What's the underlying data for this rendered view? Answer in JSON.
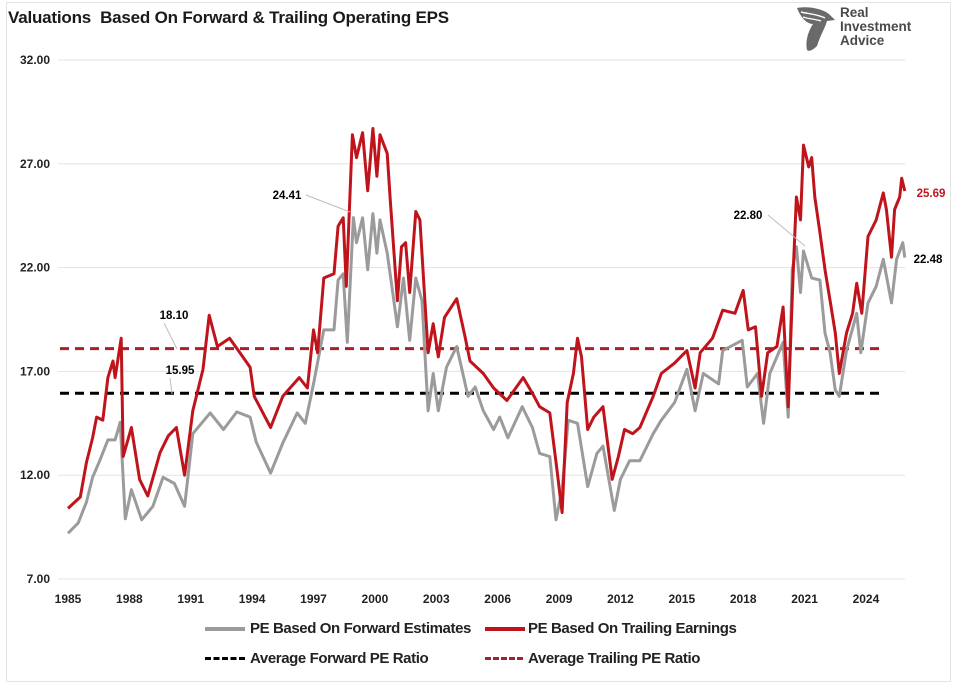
{
  "title": "Valuations  Based On Forward & Trailing Operating EPS",
  "logo": {
    "line1": "Real",
    "line2": "Investment",
    "line3": "Advice"
  },
  "chart_data": {
    "type": "line",
    "title": "Valuations  Based On Forward & Trailing Operating EPS",
    "xlabel": "",
    "ylabel": "",
    "xlim": [
      1985,
      2026
    ],
    "ylim": [
      7,
      32
    ],
    "x_ticks": [
      "1985",
      "1988",
      "1991",
      "1994",
      "1997",
      "2000",
      "2003",
      "2006",
      "2009",
      "2012",
      "2015",
      "2018",
      "2021",
      "2024"
    ],
    "y_ticks": [
      "7.00",
      "12.00",
      "17.00",
      "22.00",
      "27.00",
      "32.00"
    ],
    "grid": "horizontal",
    "legend_position": "bottom",
    "colors": {
      "forward": "#9b9b9b",
      "trailing": "#c0141c",
      "avg_forward": "#000000",
      "avg_trailing": "#a8212a"
    },
    "series": [
      {
        "name": "PE Based On Forward Estimates",
        "style": "solid",
        "points": [
          [
            1985.0,
            9.2
          ],
          [
            1985.5,
            9.7
          ],
          [
            1985.9,
            10.7
          ],
          [
            1986.2,
            11.9
          ],
          [
            1986.55,
            12.7
          ],
          [
            1986.95,
            13.7
          ],
          [
            1987.3,
            13.7
          ],
          [
            1987.55,
            14.55
          ],
          [
            1987.8,
            9.9
          ],
          [
            1988.1,
            11.3
          ],
          [
            1988.6,
            9.85
          ],
          [
            1989.15,
            10.5
          ],
          [
            1989.65,
            11.9
          ],
          [
            1990.2,
            11.6
          ],
          [
            1990.7,
            10.5
          ],
          [
            1991.1,
            14.0
          ],
          [
            1991.95,
            15.0
          ],
          [
            1992.6,
            14.2
          ],
          [
            1993.25,
            15.05
          ],
          [
            1993.9,
            14.8
          ],
          [
            1994.2,
            13.6
          ],
          [
            1994.9,
            12.1
          ],
          [
            1995.5,
            13.55
          ],
          [
            1996.2,
            15.0
          ],
          [
            1996.6,
            14.5
          ],
          [
            1997.0,
            16.4
          ],
          [
            1997.5,
            19.0
          ],
          [
            1998.0,
            19.0
          ],
          [
            1998.2,
            21.4
          ],
          [
            1998.45,
            21.7
          ],
          [
            1998.65,
            18.4
          ],
          [
            1998.95,
            24.41
          ],
          [
            1999.1,
            23.2
          ],
          [
            1999.4,
            24.4
          ],
          [
            1999.65,
            21.9
          ],
          [
            1999.9,
            24.6
          ],
          [
            2000.1,
            22.7
          ],
          [
            2000.25,
            24.3
          ],
          [
            2000.6,
            22.7
          ],
          [
            2000.9,
            20.6
          ],
          [
            2001.1,
            19.15
          ],
          [
            2001.4,
            21.5
          ],
          [
            2001.7,
            18.5
          ],
          [
            2002.0,
            21.5
          ],
          [
            2002.3,
            20.4
          ],
          [
            2002.6,
            15.1
          ],
          [
            2002.85,
            16.9
          ],
          [
            2003.1,
            15.1
          ],
          [
            2003.5,
            17.2
          ],
          [
            2004.0,
            18.2
          ],
          [
            2004.55,
            15.8
          ],
          [
            2004.9,
            16.25
          ],
          [
            2005.3,
            15.1
          ],
          [
            2005.8,
            14.2
          ],
          [
            2006.1,
            14.8
          ],
          [
            2006.5,
            13.8
          ],
          [
            2007.2,
            15.3
          ],
          [
            2007.7,
            14.3
          ],
          [
            2008.05,
            13.05
          ],
          [
            2008.55,
            12.9
          ],
          [
            2008.85,
            9.85
          ],
          [
            2009.15,
            11.3
          ],
          [
            2009.45,
            14.65
          ],
          [
            2009.9,
            14.5
          ],
          [
            2010.4,
            11.45
          ],
          [
            2010.85,
            13.05
          ],
          [
            2011.15,
            13.4
          ],
          [
            2011.7,
            10.3
          ],
          [
            2012.0,
            11.8
          ],
          [
            2012.45,
            12.7
          ],
          [
            2012.95,
            12.7
          ],
          [
            2013.6,
            14.0
          ],
          [
            2014.0,
            14.65
          ],
          [
            2014.65,
            15.5
          ],
          [
            2015.25,
            17.1
          ],
          [
            2015.65,
            15.1
          ],
          [
            2016.05,
            16.9
          ],
          [
            2016.8,
            16.4
          ],
          [
            2017.0,
            18.0
          ],
          [
            2017.95,
            18.5
          ],
          [
            2018.2,
            16.25
          ],
          [
            2018.7,
            16.9
          ],
          [
            2019.0,
            14.5
          ],
          [
            2019.3,
            16.9
          ],
          [
            2019.95,
            18.4
          ],
          [
            2020.2,
            14.8
          ],
          [
            2020.4,
            21.9
          ],
          [
            2020.6,
            23.0
          ],
          [
            2020.8,
            20.8
          ],
          [
            2020.95,
            22.8
          ],
          [
            2021.35,
            21.5
          ],
          [
            2021.75,
            21.4
          ],
          [
            2022.0,
            18.85
          ],
          [
            2022.25,
            17.9
          ],
          [
            2022.5,
            16.1
          ],
          [
            2022.7,
            15.8
          ],
          [
            2023.05,
            18.0
          ],
          [
            2023.55,
            19.8
          ],
          [
            2023.75,
            17.9
          ],
          [
            2024.1,
            20.3
          ],
          [
            2024.5,
            21.1
          ],
          [
            2024.85,
            22.4
          ],
          [
            2025.25,
            20.3
          ],
          [
            2025.5,
            22.4
          ],
          [
            2025.8,
            23.2
          ],
          [
            2025.9,
            22.48
          ]
        ]
      },
      {
        "name": "PE Based On Trailing Earnings",
        "style": "solid",
        "points": [
          [
            1985.0,
            10.4
          ],
          [
            1985.6,
            10.95
          ],
          [
            1985.9,
            12.6
          ],
          [
            1986.2,
            13.8
          ],
          [
            1986.4,
            14.8
          ],
          [
            1986.7,
            14.65
          ],
          [
            1986.95,
            16.7
          ],
          [
            1987.2,
            17.5
          ],
          [
            1987.3,
            16.7
          ],
          [
            1987.6,
            18.6
          ],
          [
            1987.7,
            12.9
          ],
          [
            1988.1,
            14.3
          ],
          [
            1988.5,
            11.8
          ],
          [
            1988.9,
            11.0
          ],
          [
            1989.5,
            13.1
          ],
          [
            1989.9,
            13.9
          ],
          [
            1990.3,
            14.3
          ],
          [
            1990.7,
            12.0
          ],
          [
            1991.1,
            15.1
          ],
          [
            1991.6,
            17.1
          ],
          [
            1991.9,
            19.7
          ],
          [
            1992.3,
            18.2
          ],
          [
            1992.9,
            18.6
          ],
          [
            1993.4,
            17.9
          ],
          [
            1993.9,
            17.2
          ],
          [
            1994.1,
            15.8
          ],
          [
            1994.9,
            14.3
          ],
          [
            1995.5,
            15.8
          ],
          [
            1996.3,
            16.7
          ],
          [
            1996.7,
            16.2
          ],
          [
            1997.0,
            19.0
          ],
          [
            1997.2,
            17.9
          ],
          [
            1997.5,
            21.5
          ],
          [
            1998.0,
            21.7
          ],
          [
            1998.2,
            24.0
          ],
          [
            1998.45,
            24.4
          ],
          [
            1998.6,
            21.1
          ],
          [
            1998.9,
            28.4
          ],
          [
            1999.1,
            27.3
          ],
          [
            1999.4,
            28.5
          ],
          [
            1999.65,
            25.7
          ],
          [
            1999.9,
            28.7
          ],
          [
            2000.1,
            26.4
          ],
          [
            2000.25,
            28.4
          ],
          [
            2000.6,
            27.5
          ],
          [
            2000.75,
            25.3
          ],
          [
            2001.1,
            20.4
          ],
          [
            2001.3,
            23.0
          ],
          [
            2001.5,
            23.2
          ],
          [
            2001.7,
            20.8
          ],
          [
            2002.0,
            24.7
          ],
          [
            2002.2,
            24.3
          ],
          [
            2002.6,
            17.9
          ],
          [
            2002.85,
            19.3
          ],
          [
            2003.1,
            17.7
          ],
          [
            2003.4,
            19.6
          ],
          [
            2004.0,
            20.5
          ],
          [
            2004.4,
            18.7
          ],
          [
            2004.65,
            17.5
          ],
          [
            2005.3,
            16.9
          ],
          [
            2005.8,
            16.2
          ],
          [
            2006.45,
            15.6
          ],
          [
            2007.25,
            16.7
          ],
          [
            2007.7,
            15.95
          ],
          [
            2008.05,
            15.3
          ],
          [
            2008.55,
            15.0
          ],
          [
            2008.9,
            12.25
          ],
          [
            2009.15,
            10.2
          ],
          [
            2009.4,
            15.5
          ],
          [
            2009.7,
            16.9
          ],
          [
            2009.9,
            18.6
          ],
          [
            2010.1,
            17.7
          ],
          [
            2010.4,
            14.2
          ],
          [
            2010.7,
            14.8
          ],
          [
            2011.15,
            15.3
          ],
          [
            2011.6,
            11.8
          ],
          [
            2011.9,
            12.9
          ],
          [
            2012.2,
            14.2
          ],
          [
            2012.6,
            14.0
          ],
          [
            2012.95,
            14.3
          ],
          [
            2013.6,
            15.8
          ],
          [
            2014.0,
            16.9
          ],
          [
            2014.65,
            17.4
          ],
          [
            2015.25,
            18.0
          ],
          [
            2015.65,
            16.2
          ],
          [
            2015.9,
            17.9
          ],
          [
            2016.5,
            18.6
          ],
          [
            2017.0,
            19.95
          ],
          [
            2017.6,
            19.8
          ],
          [
            2018.0,
            20.9
          ],
          [
            2018.25,
            19.0
          ],
          [
            2018.6,
            19.15
          ],
          [
            2018.9,
            15.8
          ],
          [
            2019.2,
            17.9
          ],
          [
            2019.65,
            18.2
          ],
          [
            2019.95,
            20.1
          ],
          [
            2020.2,
            15.3
          ],
          [
            2020.45,
            21.9
          ],
          [
            2020.6,
            25.4
          ],
          [
            2020.8,
            24.3
          ],
          [
            2020.95,
            27.9
          ],
          [
            2021.2,
            26.85
          ],
          [
            2021.35,
            27.3
          ],
          [
            2021.5,
            25.4
          ],
          [
            2021.75,
            23.7
          ],
          [
            2022.0,
            21.9
          ],
          [
            2022.25,
            20.4
          ],
          [
            2022.5,
            18.85
          ],
          [
            2022.7,
            16.9
          ],
          [
            2023.05,
            18.85
          ],
          [
            2023.35,
            19.8
          ],
          [
            2023.55,
            21.25
          ],
          [
            2023.8,
            19.8
          ],
          [
            2024.1,
            23.5
          ],
          [
            2024.5,
            24.3
          ],
          [
            2024.85,
            25.6
          ],
          [
            2025.0,
            24.8
          ],
          [
            2025.25,
            22.5
          ],
          [
            2025.4,
            24.8
          ],
          [
            2025.65,
            25.4
          ],
          [
            2025.75,
            26.3
          ],
          [
            2025.9,
            25.69
          ]
        ]
      },
      {
        "name": "Average Forward PE Ratio",
        "style": "dashed",
        "value": 15.95,
        "x_range": [
          1985,
          2024.7
        ]
      },
      {
        "name": "Average Trailing PE Ratio",
        "style": "dashed",
        "value": 18.1,
        "x_range": [
          1985,
          2024.7
        ]
      }
    ],
    "annotations": [
      {
        "text": "24.41",
        "series": "PE Based On Forward Estimates",
        "x": 1998.95,
        "y": 24.41,
        "color": "#000000"
      },
      {
        "text": "18.10",
        "series": "Average Trailing PE Ratio",
        "x": 1989.2,
        "y": 18.1,
        "color": "#000000"
      },
      {
        "text": "15.95",
        "series": "Average Forward PE Ratio",
        "x": 1989.2,
        "y": 15.95,
        "color": "#000000"
      },
      {
        "text": "22.80",
        "series": "PE Based On Forward Estimates",
        "x": 2020.95,
        "y": 22.8,
        "color": "#000000"
      },
      {
        "text": "25.69",
        "series": "PE Based On Trailing Earnings",
        "x": 2025.9,
        "y": 25.69,
        "color": "#c0141c"
      },
      {
        "text": "22.48",
        "series": "PE Based On Forward Estimates",
        "x": 2025.9,
        "y": 22.48,
        "color": "#000000"
      }
    ]
  },
  "legend": [
    {
      "label": "PE Based On Forward Estimates"
    },
    {
      "label": "PE Based On Trailing Earnings"
    },
    {
      "label": "Average Forward PE Ratio"
    },
    {
      "label": "Average Trailing PE Ratio"
    }
  ]
}
